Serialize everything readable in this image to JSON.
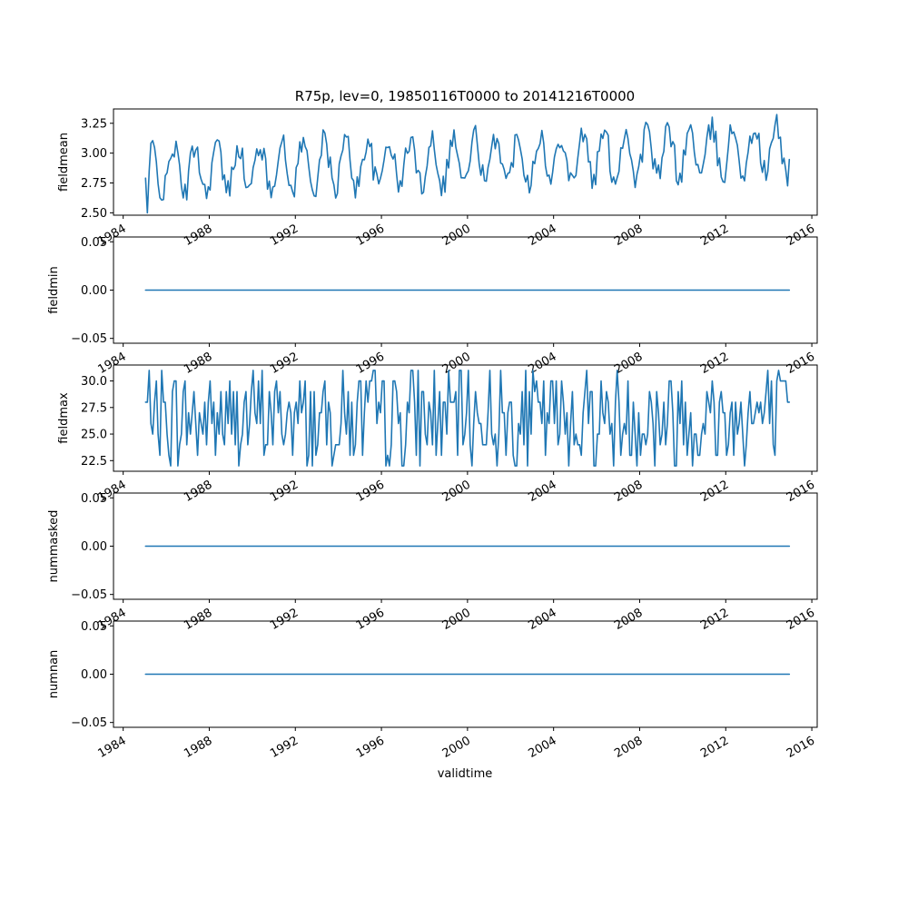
{
  "title": "R75p, lev=0, 19850116T0000 to 20141216T0000",
  "colors": {
    "series": "#1f77b4",
    "axes": "#000000",
    "background": "#ffffff"
  },
  "chart_data": {
    "type": "line",
    "title": "R75p, lev=0, 19850116T0000 to 20141216T0000",
    "xlabel": "validtime",
    "x_range": [
      "1985-01-16",
      "2014-12-16"
    ],
    "x_frequency": "monthly",
    "x_ticks": [
      "1984",
      "1988",
      "1992",
      "1996",
      "2000",
      "2004",
      "2008",
      "2012",
      "2016"
    ],
    "grid": false,
    "legend": "none",
    "subplots": [
      {
        "ylabel": "fieldmean",
        "ylim": [
          2.48,
          3.37
        ],
        "y_ticks": [
          "2.50",
          "2.75",
          "3.00",
          "3.25"
        ],
        "y_tick_values": [
          2.5,
          2.75,
          3.0,
          3.25
        ],
        "start_values": [
          2.79,
          2.5,
          2.85
        ],
        "min": 2.5,
        "max": 3.36,
        "approximate_seasonal_cycle": true
      },
      {
        "ylabel": "fieldmin",
        "ylim": [
          -0.055,
          0.055
        ],
        "y_ticks": [
          "0.05",
          "0.00",
          "−0.05"
        ],
        "y_tick_values": [
          0.05,
          0.0,
          -0.05
        ],
        "constant_value": 0.0
      },
      {
        "ylabel": "fieldmax",
        "ylim": [
          21.5,
          31.5
        ],
        "y_ticks": [
          "30.0",
          "27.5",
          "25.0",
          "22.5"
        ],
        "y_tick_values": [
          30.0,
          27.5,
          25.0,
          22.5
        ],
        "start_values": [
          28,
          28,
          31,
          26,
          25,
          28
        ],
        "min": 22,
        "max": 31,
        "integer_valued": true
      },
      {
        "ylabel": "nummasked",
        "ylim": [
          -0.055,
          0.055
        ],
        "y_ticks": [
          "0.05",
          "0.00",
          "−0.05"
        ],
        "y_tick_values": [
          0.05,
          0.0,
          -0.05
        ],
        "constant_value": 0
      },
      {
        "ylabel": "numnan",
        "ylim": [
          -0.055,
          0.055
        ],
        "y_ticks": [
          "0.05",
          "0.00",
          "−0.05"
        ],
        "y_tick_values": [
          0.05,
          0.0,
          -0.05
        ],
        "constant_value": 0
      }
    ]
  }
}
